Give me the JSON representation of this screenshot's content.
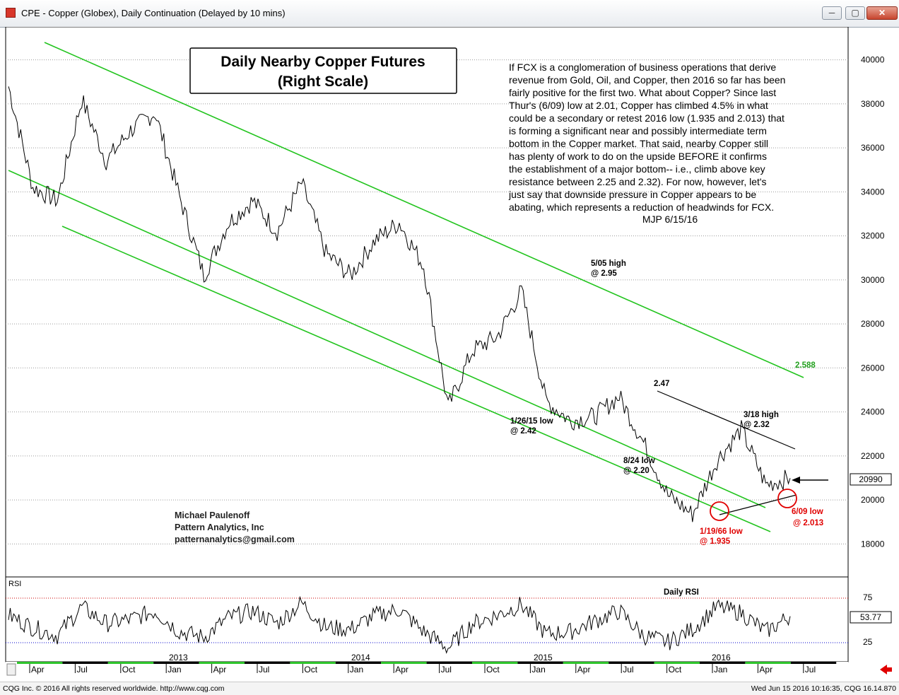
{
  "window": {
    "title": "CPE - Copper (Globex), Daily Continuation (Delayed by 10 mins)",
    "minimize_label": "─",
    "maximize_label": "▢",
    "close_label": "✕"
  },
  "chart_title": {
    "line1": "Daily Nearby Copper Futures",
    "line2": "(Right Scale)"
  },
  "commentary": {
    "lines": [
      "If FCX is a conglomeration of business operations that derive",
      "revenue from Gold, Oil, and Copper, then 2016 so far has been",
      "fairly positive for the first two. What about Copper? Since last",
      "Thur's (6/09) low at  2.01, Copper has climbed 4.5% in what",
      "could be a secondary or retest 2016 low (1.935 and 2.013) that",
      "is forming a significant near and possibly intermediate term",
      "bottom in the Copper market. That said, nearby Copper still",
      "has plenty of work to do on the upside BEFORE it confirms",
      "the establishment of a major bottom-- i.e., climb above key",
      "resistance between 2.25 and 2.32). For now, however, let's",
      "just say that downside pressure in Copper appears to be",
      "abating, which represents a reduction of headwinds for FCX."
    ],
    "signature": "MJP 6/15/16"
  },
  "author": {
    "name": "Michael Paulenoff",
    "company": "Pattern Analytics, Inc",
    "email": "patternanalytics@gmail.com"
  },
  "annotations": {
    "may05_line1": "5/05 high",
    "may05_line2": "@ 2.95",
    "val_2_588": "2.588",
    "val_2_47": "2.47",
    "mar18_line1": "3/18 high",
    "mar18_line2": "@ 2.32",
    "jan26_line1": "1/26/15 low",
    "jan26_line2": "@ 2.42",
    "aug24_line1": "8/24 low",
    "aug24_line2": "@ 2.20",
    "jun09_line1": "6/09 low",
    "jun09_line2": "@ 2.013",
    "jan19_line1": "1/19/66 low",
    "jan19_line2": "@ 1.935"
  },
  "price_axis": {
    "ticks": [
      "40000",
      "38000",
      "36000",
      "34000",
      "32000",
      "30000",
      "28000",
      "26000",
      "24000",
      "22000",
      "20000",
      "18000"
    ],
    "current_value": "20990"
  },
  "rsi_panel": {
    "label": "RSI",
    "title": "Daily RSI",
    "ticks": [
      "75",
      "25"
    ],
    "current_value": "53.77"
  },
  "time_axis": {
    "year_labels": [
      "2013",
      "2014",
      "2015",
      "2016"
    ],
    "month_labels": [
      "Apr",
      "Jul",
      "Oct",
      "Jan",
      "Apr",
      "Jul",
      "Oct",
      "Jan",
      "Apr",
      "Jul",
      "Oct",
      "Jan",
      "Apr",
      "Jul",
      "Oct",
      "Jan",
      "Apr",
      "Jul"
    ]
  },
  "footer": {
    "left": "CQG Inc. © 2016 All rights reserved worldwide. http://www.cqg.com",
    "right": "Wed Jun 15 2016 10:16:35, CQG 16.14.870"
  },
  "colors": {
    "channel": "#22c41e",
    "annotation_red": "#e00000",
    "rsi_upper": "#cc0000",
    "rsi_lower": "#0000cc"
  },
  "chart_data": {
    "type": "line",
    "title": "Daily Nearby Copper Futures",
    "x": [
      "2012-03",
      "2012-05",
      "2012-07",
      "2012-09",
      "2012-11",
      "2013-01",
      "2013-02",
      "2013-04",
      "2013-06",
      "2013-07",
      "2013-09",
      "2013-11",
      "2014-01",
      "2014-03",
      "2014-05",
      "2014-07",
      "2014-09",
      "2014-11",
      "2015-01",
      "2015-02",
      "2015-03",
      "2015-05",
      "2015-07",
      "2015-08",
      "2015-09",
      "2015-10",
      "2015-11",
      "2016-01",
      "2016-02",
      "2016-03",
      "2016-04",
      "2016-05",
      "2016-06"
    ],
    "series": [
      {
        "values": [
          38800,
          34200,
          33600,
          38200,
          35400,
          36800,
          37600,
          33800,
          30200,
          32600,
          33600,
          32200,
          34400,
          31200,
          30200,
          31800,
          32600,
          30600,
          24200,
          26800,
          27400,
          29500,
          24500,
          23600,
          23800,
          24700,
          22600,
          20200,
          19350,
          21800,
          23200,
          20700,
          20990
        ]
      }
    ],
    "ylim": [
      16500,
      41500
    ],
    "rsi_series": [
      55,
      40,
      30,
      65,
      45,
      50,
      60,
      35,
      28,
      52,
      60,
      45,
      70,
      40,
      38,
      55,
      62,
      35,
      15,
      45,
      55,
      68,
      32,
      35,
      48,
      60,
      30,
      22,
      38,
      65,
      58,
      35,
      53.77
    ],
    "rsi_ylim": [
      0,
      100
    ],
    "grid": true
  }
}
